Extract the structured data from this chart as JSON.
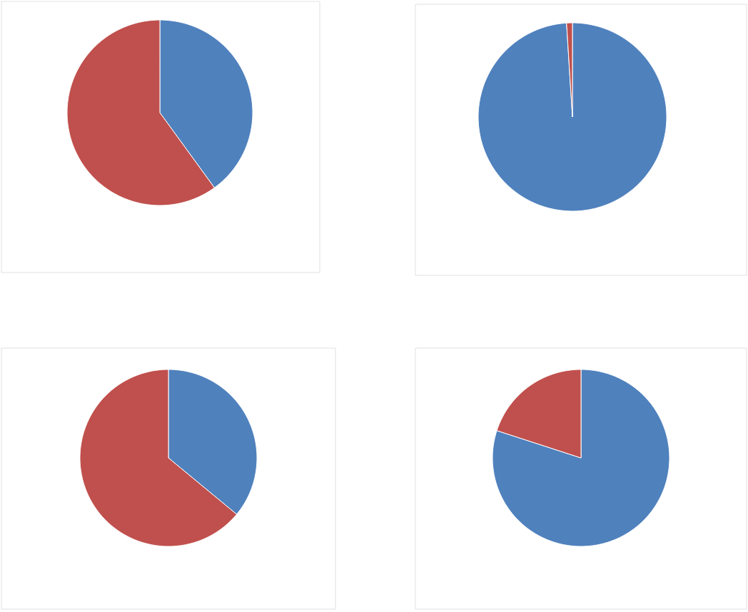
{
  "chart_data": [
    {
      "type": "pie",
      "categories": [
        null,
        null
      ],
      "values": [
        40,
        60
      ],
      "colors": [
        "#4f81bd",
        "#c0504d"
      ]
    },
    {
      "type": "pie",
      "categories": [
        null,
        null
      ],
      "values": [
        99,
        1
      ],
      "colors": [
        "#4f81bd",
        "#c0504d"
      ]
    },
    {
      "type": "pie",
      "categories": [
        null,
        null
      ],
      "values": [
        36,
        64
      ],
      "colors": [
        "#4f81bd",
        "#c0504d"
      ]
    },
    {
      "type": "pie",
      "categories": [
        null,
        null
      ],
      "values": [
        80,
        20
      ],
      "colors": [
        "#4f81bd",
        "#c0504d"
      ]
    }
  ]
}
